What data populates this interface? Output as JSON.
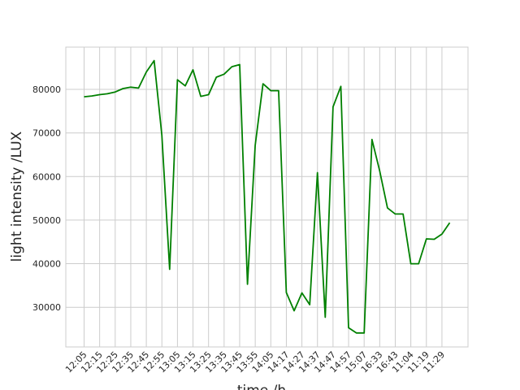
{
  "chart_data": {
    "type": "line",
    "ylabel": "light intensity /LUX",
    "xlabel": "time /h",
    "categories": [
      "12:05",
      null,
      "12:15",
      null,
      "12:25",
      null,
      "12:35",
      null,
      "12:45",
      null,
      "12:55",
      null,
      "13:05",
      null,
      "13:15",
      null,
      "13:25",
      null,
      "13:35",
      null,
      "13:45",
      null,
      "13:55",
      null,
      "14:05",
      null,
      "14:17",
      null,
      "14:27",
      null,
      "14:37",
      null,
      "14:47",
      null,
      "14:57",
      null,
      "15:07",
      null,
      "16:33",
      null,
      "16:43",
      null,
      "11:04",
      null,
      "11:19",
      null,
      "11:29",
      null
    ],
    "values": [
      78300,
      78500,
      78800,
      79000,
      79400,
      80200,
      80500,
      80300,
      84000,
      86600,
      69500,
      38700,
      82200,
      80800,
      84500,
      78400,
      78800,
      82800,
      83500,
      85200,
      85700,
      35300,
      67200,
      81300,
      79700,
      79700,
      33400,
      29200,
      33300,
      30600,
      60900,
      27700,
      76000,
      80700,
      25300,
      24100,
      24100,
      68500,
      61300,
      52800,
      51400,
      51400,
      40000,
      40000,
      45700,
      45600,
      46800,
      49400
    ],
    "color": "#008000",
    "ylim": [
      20900,
      89700
    ],
    "yticks": [
      30000,
      40000,
      50000,
      60000,
      70000,
      80000
    ],
    "grid": true
  }
}
